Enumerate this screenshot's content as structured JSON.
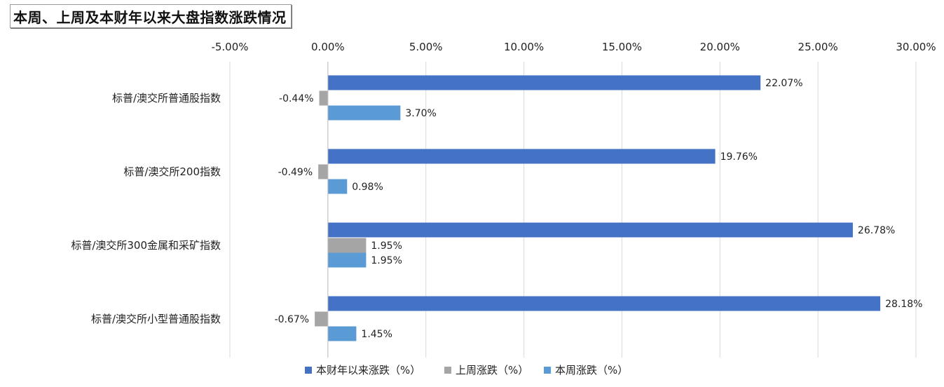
{
  "title": "本周、上周及本财年以来大盘指数涨跌情况",
  "chart_data": {
    "type": "bar",
    "orientation": "horizontal",
    "title": "本周、上周及本财年以来大盘指数涨跌情况",
    "xlabel": "",
    "ylabel": "",
    "xlim": [
      -5,
      30
    ],
    "x_ticks": [
      -5,
      0,
      5,
      10,
      15,
      20,
      25,
      30
    ],
    "x_tick_labels": [
      "-5.00%",
      "0.00%",
      "5.00%",
      "10.00%",
      "15.00%",
      "20.00%",
      "25.00%",
      "30.00%"
    ],
    "x_axis_position": "top",
    "grid": "vertical",
    "legend_position": "bottom",
    "categories": [
      "标普/澳交所普通股指数",
      "标普/澳交所200指数",
      "标普/澳交所300金属和采矿指数",
      "标普/澳交所小型普通股指数"
    ],
    "series": [
      {
        "name": "本财年以来涨跌（%）",
        "color": "#4472c4",
        "values": [
          22.07,
          19.76,
          26.78,
          28.18
        ],
        "labels": [
          "22.07%",
          "19.76%",
          "26.78%",
          "28.18%"
        ]
      },
      {
        "name": "上周涨跌（%）",
        "color": "#a5a5a5",
        "values": [
          -0.44,
          -0.49,
          1.95,
          -0.67
        ],
        "labels": [
          "-0.44%",
          "-0.49%",
          "1.95%",
          "-0.67%"
        ]
      },
      {
        "name": "本周涨跌（%）",
        "color": "#5b9bd5",
        "values": [
          3.7,
          0.98,
          1.95,
          1.45
        ],
        "labels": [
          "3.70%",
          "0.98%",
          "1.95%",
          "1.45%"
        ]
      }
    ]
  }
}
